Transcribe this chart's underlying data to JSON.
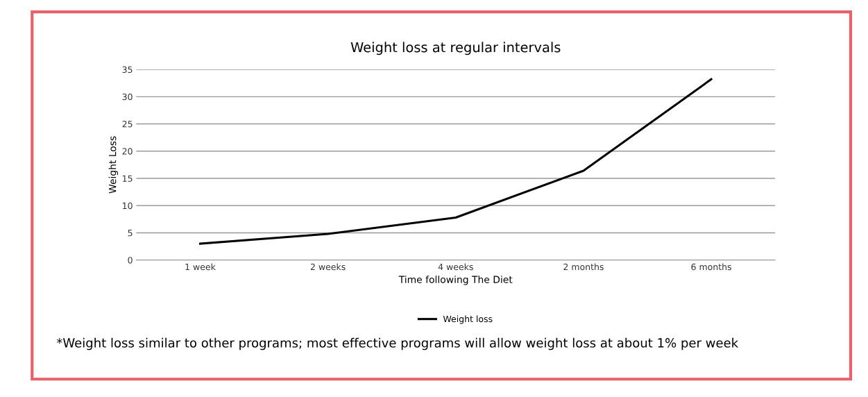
{
  "chart_data": {
    "type": "line",
    "title": "Weight loss at regular intervals",
    "xlabel": "Time following The Diet",
    "ylabel": "Weight Loss",
    "categories": [
      "1 week",
      "2 weeks",
      "4 weeks",
      "2 months",
      "6 months"
    ],
    "series": [
      {
        "name": "Weight loss",
        "color": "#000000",
        "values": [
          3,
          4.8,
          7.8,
          16.4,
          33.2
        ]
      }
    ],
    "ylim": [
      0,
      35
    ],
    "yticks": [
      0,
      5,
      10,
      15,
      20,
      25,
      30,
      35
    ],
    "grid": "y",
    "legend": "bottom",
    "marker": "none",
    "line_style": "solid",
    "annotations": [
      "*Weight loss similar to other programs; most effective programs will allow weight loss at about 1% per week"
    ]
  }
}
